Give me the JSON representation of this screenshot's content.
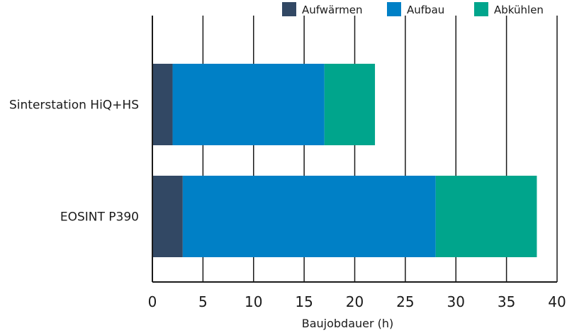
{
  "chart_data": {
    "type": "bar",
    "orientation": "horizontal",
    "stacked": true,
    "title": "",
    "xlabel": "Baujobdauer (h)",
    "ylabel": "",
    "xlim": [
      0,
      40
    ],
    "xticks": [
      0,
      5,
      10,
      15,
      20,
      25,
      30,
      35,
      40
    ],
    "grid": true,
    "legend_position": "top-right",
    "categories": [
      "Sinterstation HiQ+HS",
      "EOSINT P390"
    ],
    "series": [
      {
        "name": "Aufwärmen",
        "color": "#324864",
        "values": [
          2,
          3
        ]
      },
      {
        "name": "Aufbau",
        "color": "#0080c6",
        "values": [
          15,
          25
        ]
      },
      {
        "name": "Abkühlen",
        "color": "#00a58c",
        "values": [
          5,
          10
        ]
      }
    ]
  }
}
